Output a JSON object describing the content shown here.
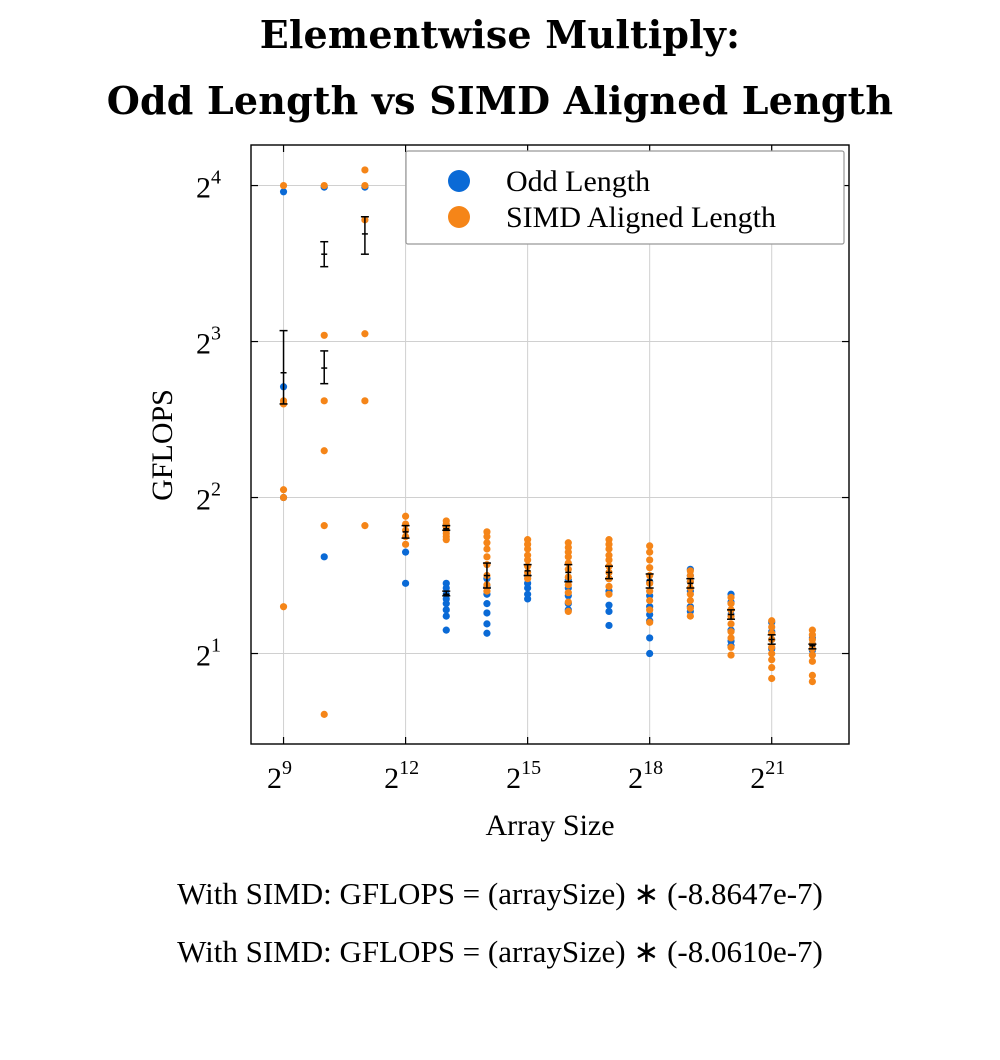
{
  "chart_data": {
    "type": "scatter",
    "title_lines": [
      "Elementwise Multiply:",
      "Odd Length vs SIMD Aligned Length"
    ],
    "xlabel": "Array Size",
    "ylabel": "GFLOPS",
    "x_scale": "log2",
    "y_scale": "log2",
    "x_ticks": [
      {
        "base": "2",
        "exp": "9",
        "value_log2": 9
      },
      {
        "base": "2",
        "exp": "12",
        "value_log2": 12
      },
      {
        "base": "2",
        "exp": "15",
        "value_log2": 15
      },
      {
        "base": "2",
        "exp": "18",
        "value_log2": 18
      },
      {
        "base": "2",
        "exp": "21",
        "value_log2": 21
      }
    ],
    "y_ticks": [
      {
        "base": "2",
        "exp": "1",
        "value_log2": 1
      },
      {
        "base": "2",
        "exp": "2",
        "value_log2": 2
      },
      {
        "base": "2",
        "exp": "3",
        "value_log2": 3
      },
      {
        "base": "2",
        "exp": "4",
        "value_log2": 4
      }
    ],
    "xlim_log2": [
      8.2,
      22.9
    ],
    "ylim_log2": [
      0.42,
      4.26
    ],
    "grid": true,
    "legend_position": "top-right",
    "series": [
      {
        "name": "Odd Length",
        "color": "#0a6ad6",
        "points": [
          [
            9,
            3.96
          ],
          [
            9,
            2.0
          ],
          [
            9,
            2.71
          ],
          [
            10,
            3.99
          ],
          [
            10,
            1.62
          ],
          [
            11,
            3.99
          ],
          [
            12,
            1.65
          ],
          [
            12,
            1.45
          ],
          [
            13,
            1.45
          ],
          [
            13,
            1.42
          ],
          [
            13,
            1.38
          ],
          [
            13,
            1.35
          ],
          [
            13,
            1.32
          ],
          [
            13,
            1.28
          ],
          [
            13,
            1.24
          ],
          [
            13,
            1.15
          ],
          [
            14,
            1.48
          ],
          [
            14,
            1.43
          ],
          [
            14,
            1.38
          ],
          [
            14,
            1.32
          ],
          [
            14,
            1.26
          ],
          [
            14,
            1.19
          ],
          [
            14,
            1.13
          ],
          [
            15,
            1.5
          ],
          [
            15,
            1.45
          ],
          [
            15,
            1.42
          ],
          [
            15,
            1.38
          ],
          [
            15,
            1.35
          ],
          [
            16,
            1.47
          ],
          [
            16,
            1.42
          ],
          [
            16,
            1.37
          ],
          [
            16,
            1.32
          ],
          [
            16,
            1.28
          ],
          [
            17,
            1.48
          ],
          [
            17,
            1.4
          ],
          [
            17,
            1.31
          ],
          [
            17,
            1.27
          ],
          [
            17,
            1.18
          ],
          [
            18,
            1.46
          ],
          [
            18,
            1.37
          ],
          [
            18,
            1.3
          ],
          [
            18,
            1.25
          ],
          [
            18,
            1.21
          ],
          [
            18,
            1.1
          ],
          [
            18,
            1.0
          ],
          [
            19,
            1.54
          ],
          [
            19,
            1.5
          ],
          [
            19,
            1.46
          ],
          [
            19,
            1.4
          ],
          [
            19,
            1.3
          ],
          [
            19,
            1.27
          ],
          [
            20,
            1.38
          ],
          [
            20,
            1.33
          ],
          [
            20,
            1.25
          ],
          [
            20,
            1.15
          ],
          [
            20,
            1.08
          ],
          [
            20,
            1.05
          ],
          [
            21,
            1.2
          ],
          [
            21,
            1.14
          ],
          [
            21,
            1.09
          ],
          [
            21,
            1.03
          ],
          [
            22,
            1.1
          ],
          [
            22,
            1.06
          ],
          [
            22,
            1.02
          ]
        ]
      },
      {
        "name": "SIMD Aligned Length",
        "color": "#f58518",
        "points": [
          [
            9,
            4.0
          ],
          [
            9,
            2.6
          ],
          [
            9,
            2.62
          ],
          [
            9,
            2.05
          ],
          [
            9,
            2.0
          ],
          [
            9,
            1.3
          ],
          [
            10,
            4.0
          ],
          [
            10,
            3.04
          ],
          [
            10,
            2.62
          ],
          [
            10,
            2.3
          ],
          [
            10,
            1.82
          ],
          [
            10,
            0.61
          ],
          [
            11,
            4.0
          ],
          [
            11,
            3.78
          ],
          [
            11,
            3.05
          ],
          [
            11,
            2.62
          ],
          [
            11,
            1.82
          ],
          [
            11,
            4.1
          ],
          [
            12,
            1.88
          ],
          [
            12,
            1.83
          ],
          [
            12,
            1.79
          ],
          [
            12,
            1.75
          ],
          [
            12,
            1.7
          ],
          [
            13,
            1.85
          ],
          [
            13,
            1.83
          ],
          [
            13,
            1.81
          ],
          [
            13,
            1.79
          ],
          [
            13,
            1.77
          ],
          [
            13,
            1.75
          ],
          [
            13,
            1.73
          ],
          [
            14,
            1.78
          ],
          [
            14,
            1.75
          ],
          [
            14,
            1.71
          ],
          [
            14,
            1.67
          ],
          [
            14,
            1.62
          ],
          [
            14,
            1.57
          ],
          [
            14,
            1.5
          ],
          [
            14,
            1.44
          ],
          [
            14,
            1.4
          ],
          [
            15,
            1.73
          ],
          [
            15,
            1.7
          ],
          [
            15,
            1.67
          ],
          [
            15,
            1.63
          ],
          [
            15,
            1.6
          ],
          [
            15,
            1.56
          ],
          [
            15,
            1.52
          ],
          [
            15,
            1.48
          ],
          [
            16,
            1.71
          ],
          [
            16,
            1.68
          ],
          [
            16,
            1.65
          ],
          [
            16,
            1.62
          ],
          [
            16,
            1.58
          ],
          [
            16,
            1.54
          ],
          [
            16,
            1.49
          ],
          [
            16,
            1.44
          ],
          [
            16,
            1.39
          ],
          [
            16,
            1.33
          ],
          [
            16,
            1.27
          ],
          [
            17,
            1.73
          ],
          [
            17,
            1.7
          ],
          [
            17,
            1.67
          ],
          [
            17,
            1.63
          ],
          [
            17,
            1.6
          ],
          [
            17,
            1.56
          ],
          [
            17,
            1.52
          ],
          [
            17,
            1.48
          ],
          [
            17,
            1.43
          ],
          [
            17,
            1.38
          ],
          [
            18,
            1.69
          ],
          [
            18,
            1.65
          ],
          [
            18,
            1.6
          ],
          [
            18,
            1.55
          ],
          [
            18,
            1.5
          ],
          [
            18,
            1.45
          ],
          [
            18,
            1.4
          ],
          [
            18,
            1.34
          ],
          [
            18,
            1.28
          ],
          [
            18,
            1.2
          ],
          [
            19,
            1.53
          ],
          [
            19,
            1.5
          ],
          [
            19,
            1.46
          ],
          [
            19,
            1.42
          ],
          [
            19,
            1.38
          ],
          [
            19,
            1.34
          ],
          [
            19,
            1.29
          ],
          [
            19,
            1.24
          ],
          [
            20,
            1.36
          ],
          [
            20,
            1.32
          ],
          [
            20,
            1.28
          ],
          [
            20,
            1.24
          ],
          [
            20,
            1.19
          ],
          [
            20,
            1.14
          ],
          [
            20,
            1.1
          ],
          [
            20,
            1.04
          ],
          [
            20,
            0.99
          ],
          [
            21,
            1.21
          ],
          [
            21,
            1.17
          ],
          [
            21,
            1.13
          ],
          [
            21,
            1.09
          ],
          [
            21,
            1.04
          ],
          [
            21,
            1.0
          ],
          [
            21,
            0.96
          ],
          [
            21,
            0.91
          ],
          [
            21,
            0.84
          ],
          [
            22,
            1.15
          ],
          [
            22,
            1.12
          ],
          [
            22,
            1.09
          ],
          [
            22,
            1.06
          ],
          [
            22,
            1.03
          ],
          [
            22,
            0.99
          ],
          [
            22,
            0.95
          ],
          [
            22,
            0.86
          ],
          [
            22,
            0.82
          ]
        ]
      }
    ],
    "error_bars": [
      {
        "x": 9,
        "y": 2.8,
        "low": 2.6,
        "high": 3.07
      },
      {
        "x": 10,
        "y": 2.83,
        "low": 2.73,
        "high": 2.94
      },
      {
        "x": 10,
        "y": 3.56,
        "low": 3.48,
        "high": 3.64
      },
      {
        "x": 11,
        "y": 3.69,
        "low": 3.56,
        "high": 3.8
      },
      {
        "x": 12,
        "y": 1.78,
        "low": 1.74,
        "high": 1.82
      },
      {
        "x": 13,
        "y": 1.8,
        "low": 1.79,
        "high": 1.82
      },
      {
        "x": 13,
        "y": 1.38,
        "low": 1.37,
        "high": 1.4
      },
      {
        "x": 14,
        "y": 1.5,
        "low": 1.42,
        "high": 1.58
      },
      {
        "x": 15,
        "y": 1.53,
        "low": 1.5,
        "high": 1.57
      },
      {
        "x": 16,
        "y": 1.52,
        "low": 1.46,
        "high": 1.57
      },
      {
        "x": 17,
        "y": 1.52,
        "low": 1.48,
        "high": 1.56
      },
      {
        "x": 18,
        "y": 1.47,
        "low": 1.42,
        "high": 1.51
      },
      {
        "x": 19,
        "y": 1.45,
        "low": 1.42,
        "high": 1.48
      },
      {
        "x": 20,
        "y": 1.25,
        "low": 1.22,
        "high": 1.28
      },
      {
        "x": 21,
        "y": 1.09,
        "low": 1.06,
        "high": 1.12
      },
      {
        "x": 22,
        "y": 1.05,
        "low": 1.03,
        "high": 1.06
      }
    ],
    "annotations": [
      "With SIMD:  GFLOPS = (arraySize) ∗ (-8.8647e-7)",
      "With SIMD:  GFLOPS = (arraySize) ∗ (-8.0610e-7)"
    ]
  }
}
